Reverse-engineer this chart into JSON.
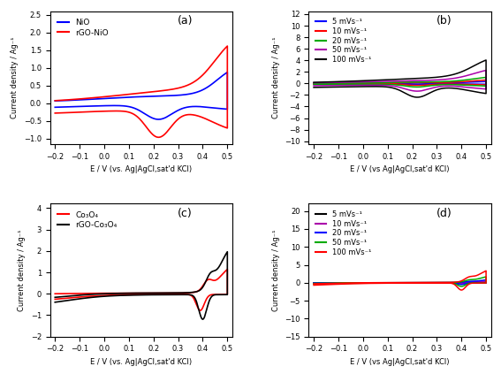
{
  "fig_width": 5.67,
  "fig_height": 4.23,
  "dpi": 100,
  "panels": [
    "(a)",
    "(b)",
    "(c)",
    "(d)"
  ],
  "xlabel_a": "E / V (vs. Ag|AgCl,sat'd KCl)",
  "xlabel_b": "E / V (vs Ag|AgCl,sat'd KCl)",
  "xlabel_c": "E / V (vs. Ag|AgCl,sat'd KCl)",
  "xlabel_d": "E / V (vs Ag|AgCl,sat'd KCl)",
  "ylabel": "Current density / Ag⁻¹",
  "panel_a": {
    "xlim": [
      -0.22,
      0.52
    ],
    "ylim": [
      -1.15,
      2.6
    ],
    "yticks": [
      -1.0,
      -0.5,
      0.0,
      0.5,
      1.0,
      1.5,
      2.0,
      2.5
    ],
    "xticks": [
      -0.2,
      -0.1,
      0.0,
      0.1,
      0.2,
      0.3,
      0.4,
      0.5
    ],
    "legend": [
      "NiO",
      "rGO-NiO"
    ],
    "colors": [
      "#0000ff",
      "#ff0000"
    ]
  },
  "panel_b": {
    "xlim": [
      -0.22,
      0.52
    ],
    "ylim": [
      -10.5,
      12.5
    ],
    "yticks": [
      -10,
      -8,
      -6,
      -4,
      -2,
      0,
      2,
      4,
      6,
      8,
      10,
      12
    ],
    "xticks": [
      -0.2,
      -0.1,
      0.0,
      0.1,
      0.2,
      0.3,
      0.4,
      0.5
    ],
    "legend": [
      "5 mVs⁻¹",
      "10 mVs⁻¹",
      "20 mVs⁻¹",
      "50 mVs⁻¹",
      "100 mVs⁻¹"
    ],
    "colors": [
      "#0000ff",
      "#ff0000",
      "#00aa00",
      "#aa00aa",
      "#000000"
    ]
  },
  "panel_c": {
    "xlim": [
      -0.22,
      0.52
    ],
    "ylim": [
      -2.0,
      4.2
    ],
    "yticks": [
      -2,
      -1,
      0,
      1,
      2,
      3,
      4
    ],
    "xticks": [
      -0.2,
      -0.1,
      0.0,
      0.1,
      0.2,
      0.3,
      0.4,
      0.5
    ],
    "legend": [
      "Co₃O₄",
      "rGO-Co₃O₄"
    ],
    "colors": [
      "#ff0000",
      "#000000"
    ]
  },
  "panel_d": {
    "xlim": [
      -0.22,
      0.52
    ],
    "ylim": [
      -15.0,
      22.0
    ],
    "yticks": [
      -15,
      -10,
      -5,
      0,
      5,
      10,
      15,
      20
    ],
    "xticks": [
      -0.2,
      -0.1,
      0.0,
      0.1,
      0.2,
      0.3,
      0.4,
      0.5
    ],
    "legend": [
      "5 mVs⁻¹",
      "10 mVs⁻¹",
      "20 mVs⁻¹",
      "50 mVs⁻¹",
      "100 mVs⁻¹"
    ],
    "colors": [
      "#000000",
      "#aa00aa",
      "#0000ff",
      "#00aa00",
      "#ff0000"
    ]
  }
}
